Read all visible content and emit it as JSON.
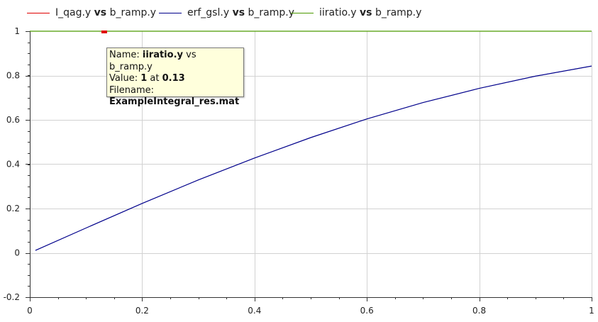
{
  "chart_data": {
    "type": "line",
    "xlim": [
      0,
      1
    ],
    "ylim": [
      -0.2,
      1
    ],
    "x_ticks": [
      "0",
      "0.2",
      "0.4",
      "0.6",
      "0.8",
      "1"
    ],
    "y_ticks": [
      "-0.2",
      "0",
      "0.2",
      "0.4",
      "0.6",
      "0.8",
      "1"
    ],
    "grid": true,
    "legend_position": "top",
    "series": [
      {
        "name_main": "I_qag.y",
        "vs": "vs",
        "name_x": "b_ramp.y",
        "color": "#e00000",
        "x": [
          0.13,
          0.135
        ],
        "y": [
          1.0,
          1.0
        ]
      },
      {
        "name_main": "erf_gsl.y",
        "vs": "vs",
        "name_x": "b_ramp.y",
        "color": "#00008b",
        "x": [
          0.01,
          0.1,
          0.2,
          0.3,
          0.4,
          0.5,
          0.6,
          0.7,
          0.8,
          0.9,
          1.0
        ],
        "y": [
          0.011,
          0.112,
          0.223,
          0.329,
          0.428,
          0.52,
          0.604,
          0.678,
          0.742,
          0.797,
          0.843
        ]
      },
      {
        "name_main": "iiratio.y",
        "vs": "vs",
        "name_x": "b_ramp.y",
        "color": "#4c9a00",
        "x": [
          0,
          1
        ],
        "y": [
          1,
          1
        ]
      }
    ]
  },
  "tooltip": {
    "name_label": "Name:",
    "name_main": "iiratio.y",
    "name_vs": "vs",
    "name_x": "b_ramp.y",
    "value_label": "Value:",
    "value": "1",
    "at": "at",
    "at_value": "0.13",
    "filename_label": "Filename:",
    "filename": "ExampleIntegral_res.mat"
  }
}
